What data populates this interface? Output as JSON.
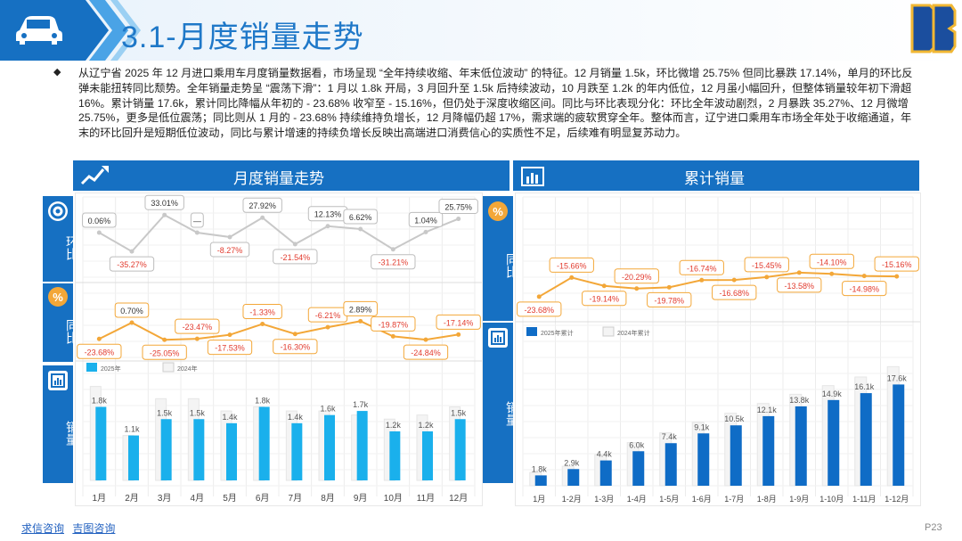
{
  "page": {
    "title": "3.1-月度销量走势",
    "paragraph": "从辽宁省 2025 年 12 月进口乘用车月度销量数据看，市场呈现 “全年持续收缩、年末低位波动” 的特征。12 月销量 1.5k，环比微增 25.75% 但同比暴跌 17.14%，单月的环比反弹未能扭转同比颓势。全年销量走势呈 “震荡下滑”：1 月以 1.8k 开局，3 月回升至 1.5k 后持续波动，10 月跌至 1.2k 的年内低位，12 月虽小幅回升，但整体销量较年初下滑超 16%。累计销量 17.6k，累计同比降幅从年初的 - 23.68% 收窄至 - 15.16%，但仍处于深度收缩区间。同比与环比表现分化：环比全年波动剧烈，2 月暴跌 35.27%、12 月微增 25.75%，更多是低位震荡；同比则从 1 月的 - 23.68% 持续维持负增长，12 月降幅仍超 17%，需求端的疲软贯穿全年。整体而言，辽宁进口乘用车市场全年处于收缩通道，年末的环比回升是短期低位波动，同比与累计增速的持续负增长反映出高端进口消费信心的实质性不足，后续难有明显复苏动力。",
    "footer_links": [
      "求信咨询",
      "吉图咨询"
    ],
    "page_number": "P23",
    "logo_text": "DB"
  },
  "left_panel": {
    "header": "月度销量走势",
    "side_labels": {
      "mom": "环比",
      "yoy": "同比",
      "sales": "销量"
    }
  },
  "right_panel": {
    "header": "累计销量",
    "side_labels": {
      "yoy": "同比",
      "sales": "销量"
    }
  },
  "colors": {
    "primary": "#1670c2",
    "bar2025": "#1ab0ec",
    "bar_cum": "#0f6cc6",
    "neg": "#e23b2e",
    "line": "#f3a738"
  },
  "chart_data": [
    {
      "id": "monthly_mom",
      "type": "line",
      "title": "环比",
      "categories": [
        "1月",
        "2月",
        "3月",
        "4月",
        "5月",
        "6月",
        "7月",
        "8月",
        "9月",
        "10月",
        "11月",
        "12月"
      ],
      "values": [
        0.06,
        -35.27,
        33.01,
        null,
        -8.27,
        27.92,
        -21.54,
        12.13,
        6.62,
        -31.21,
        1.04,
        25.75
      ],
      "labels": [
        "0.06%",
        "-35.27%",
        "33.01%",
        "—",
        "-8.27%",
        "27.92%",
        "-21.54%",
        "12.13%",
        "6.62%",
        "-31.21%",
        "1.04%",
        "25.75%"
      ],
      "ylim": [
        -40,
        40
      ]
    },
    {
      "id": "monthly_yoy",
      "type": "line",
      "title": "同比",
      "categories": [
        "1月",
        "2月",
        "3月",
        "4月",
        "5月",
        "6月",
        "7月",
        "8月",
        "9月",
        "10月",
        "11月",
        "12月"
      ],
      "values": [
        -23.68,
        0.7,
        -25.05,
        -23.47,
        -17.53,
        -1.33,
        -16.3,
        -6.21,
        2.89,
        -19.87,
        -24.84,
        -17.14
      ],
      "labels": [
        "-23.68%",
        "0.70%",
        "-25.05%",
        "-23.47%",
        "-17.53%",
        "-1.33%",
        "-16.30%",
        "-6.21%",
        "2.89%",
        "-19.87%",
        "-24.84%",
        "-17.14%"
      ],
      "ylim": [
        -30,
        10
      ]
    },
    {
      "id": "monthly_sales",
      "type": "bar",
      "title": "销量",
      "categories": [
        "1月",
        "2月",
        "3月",
        "4月",
        "5月",
        "6月",
        "7月",
        "8月",
        "9月",
        "10月",
        "11月",
        "12月"
      ],
      "series": [
        {
          "name": "2025年",
          "values": [
            1.8,
            1.1,
            1.5,
            1.5,
            1.4,
            1.8,
            1.4,
            1.6,
            1.7,
            1.2,
            1.2,
            1.5
          ],
          "labels": [
            "1.8k",
            "1.1k",
            "1.5k",
            "1.5k",
            "1.4k",
            "1.8k",
            "1.4k",
            "1.6k",
            "1.7k",
            "1.2k",
            "1.2k",
            "1.5k"
          ]
        },
        {
          "name": "2024年",
          "values": [
            2.3,
            1.1,
            2.0,
            2.0,
            1.7,
            1.8,
            1.7,
            1.7,
            1.6,
            1.5,
            1.6,
            1.8
          ]
        }
      ],
      "ylim": [
        0,
        2.4
      ]
    },
    {
      "id": "cum_yoy",
      "type": "line",
      "title": "同比",
      "categories": [
        "1月",
        "1-2月",
        "1-3月",
        "1-4月",
        "1-5月",
        "1-6月",
        "1-7月",
        "1-8月",
        "1-9月",
        "1-10月",
        "1-11月",
        "1-12月"
      ],
      "values": [
        -23.68,
        -15.66,
        -19.14,
        -20.29,
        -19.78,
        -16.74,
        -16.68,
        -15.45,
        -13.58,
        -14.1,
        -14.98,
        -15.16
      ],
      "labels": [
        "-23.68%",
        "-15.66%",
        "-19.14%",
        "-20.29%",
        "-19.78%",
        "-16.74%",
        "-16.68%",
        "-15.45%",
        "-13.58%",
        "-14.10%",
        "-14.98%",
        "-15.16%"
      ],
      "ylim": [
        -26,
        -8
      ]
    },
    {
      "id": "cum_sales",
      "type": "bar",
      "title": "销量",
      "categories": [
        "1月",
        "1-2月",
        "1-3月",
        "1-4月",
        "1-5月",
        "1-6月",
        "1-7月",
        "1-8月",
        "1-9月",
        "1-10月",
        "1-11月",
        "1-12月"
      ],
      "series": [
        {
          "name": "2025年累计",
          "values": [
            1.8,
            2.9,
            4.4,
            6.0,
            7.4,
            9.1,
            10.5,
            12.1,
            13.8,
            14.9,
            16.1,
            17.6
          ],
          "labels": [
            "1.8k",
            "2.9k",
            "4.4k",
            "6.0k",
            "7.4k",
            "9.1k",
            "10.5k",
            "12.1k",
            "13.8k",
            "14.9k",
            "16.1k",
            "17.6k"
          ]
        },
        {
          "name": "2024年累计",
          "values": [
            2.3,
            3.4,
            5.4,
            7.5,
            9.2,
            11.0,
            12.6,
            14.3,
            15.9,
            17.4,
            18.9,
            20.7
          ]
        }
      ],
      "ylim": [
        0,
        22
      ]
    }
  ]
}
